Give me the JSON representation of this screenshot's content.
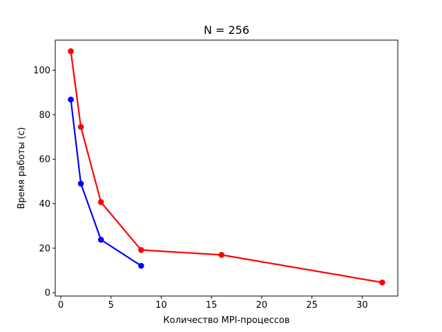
{
  "chart_data": {
    "type": "line",
    "title": "N = 256",
    "xlabel": "Количество MPI-процессов",
    "ylabel": "Время работы (с)",
    "xlim": [
      -0.55,
      33.55
    ],
    "ylim": [
      -1.5,
      113.5
    ],
    "xticks": [
      0,
      5,
      10,
      15,
      20,
      25,
      30
    ],
    "yticks": [
      0,
      20,
      40,
      60,
      80,
      100
    ],
    "grid": false,
    "series": [
      {
        "color": "#0000ff",
        "x": [
          1,
          2,
          4,
          8
        ],
        "y": [
          86.8,
          49.0,
          23.8,
          12.1
        ]
      },
      {
        "color": "#ff0000",
        "x": [
          1,
          2,
          4,
          8,
          16,
          32
        ],
        "y": [
          108.5,
          74.5,
          40.7,
          19.2,
          17.0,
          4.6
        ]
      }
    ]
  }
}
